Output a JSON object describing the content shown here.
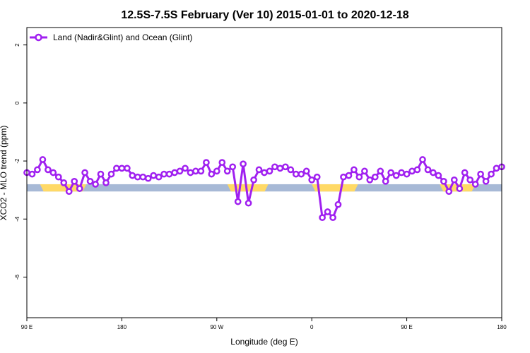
{
  "chart_data": {
    "type": "line",
    "title": "12.5S-7.5S February (Ver 10)   2015-01-01 to 2020-12-18",
    "xlabel": "Longitude (deg E)",
    "ylabel": "XCO2 - MLO trend (ppm)",
    "xlim": [
      90,
      450
    ],
    "ylim": [
      -7.4,
      2.6
    ],
    "x_ticks": [
      {
        "value": 90,
        "label": "90 E"
      },
      {
        "value": 162,
        "label": "180"
      },
      {
        "value": 234,
        "label": "90 W"
      },
      {
        "value": 306,
        "label": "0"
      },
      {
        "value": 378,
        "label": "90 E"
      },
      {
        "value": 450,
        "label": "180"
      }
    ],
    "y_ticks": [
      {
        "value": 2,
        "label": "2"
      },
      {
        "value": 0,
        "label": "0"
      },
      {
        "value": -2,
        "label": "-2"
      },
      {
        "value": -4,
        "label": "-4"
      },
      {
        "value": -6,
        "label": "-6"
      }
    ],
    "grid": false,
    "legend_position": "top-left",
    "series": [
      {
        "name": "Land (Nadir&Glint) and Ocean (Glint)",
        "color": "#a020f0",
        "marker": "open-circle",
        "x": [
          90,
          94,
          98,
          102,
          106,
          110,
          114,
          118,
          122,
          126,
          130,
          134,
          138,
          142,
          146,
          150,
          154,
          158,
          162,
          166,
          170,
          174,
          178,
          182,
          186,
          190,
          194,
          198,
          202,
          206,
          210,
          214,
          218,
          222,
          226,
          230,
          234,
          238,
          242,
          246,
          250,
          254,
          258,
          262,
          266,
          270,
          274,
          278,
          282,
          286,
          290,
          294,
          298,
          302,
          306,
          310,
          314,
          318,
          322,
          326,
          330,
          334,
          338,
          342,
          346,
          350,
          354,
          358,
          362,
          366,
          370,
          374,
          378,
          382,
          386,
          390,
          394,
          398,
          402,
          406,
          410,
          414,
          418,
          422,
          426,
          430,
          434,
          438,
          442,
          446,
          450
        ],
        "values": [
          -2.4,
          -2.45,
          -2.3,
          -1.95,
          -2.3,
          -2.4,
          -2.55,
          -2.75,
          -3.05,
          -2.7,
          -2.95,
          -2.4,
          -2.7,
          -2.8,
          -2.45,
          -2.75,
          -2.45,
          -2.25,
          -2.25,
          -2.25,
          -2.5,
          -2.55,
          -2.55,
          -2.6,
          -2.5,
          -2.55,
          -2.45,
          -2.45,
          -2.4,
          -2.35,
          -2.25,
          -2.4,
          -2.35,
          -2.35,
          -2.05,
          -2.45,
          -2.35,
          -2.05,
          -2.35,
          -2.2,
          -3.4,
          -2.1,
          -3.45,
          -2.65,
          -2.3,
          -2.4,
          -2.35,
          -2.2,
          -2.25,
          -2.2,
          -2.3,
          -2.45,
          -2.45,
          -2.35,
          -2.65,
          -2.55,
          -3.95,
          -3.75,
          -3.95,
          -3.5,
          -2.55,
          -2.5,
          -2.3,
          -2.55,
          -2.35,
          -2.65,
          -2.55,
          -2.35,
          -2.7,
          -2.4,
          -2.5,
          -2.4,
          -2.45,
          -2.35,
          -2.3,
          -1.95,
          -2.3,
          -2.4,
          -2.5,
          -2.7,
          -3.05,
          -2.65,
          -2.95,
          -2.4,
          -2.65,
          -2.8,
          -2.45,
          -2.7,
          -2.45,
          -2.25,
          -2.2
        ]
      }
    ],
    "background_band": {
      "y_range": [
        -3.05,
        -2.8
      ],
      "color": "#a7b9d6",
      "highlight_color": "#ffd966",
      "highlights": [
        {
          "x": [
            100,
            135
          ]
        },
        {
          "x": [
            242,
            273
          ]
        },
        {
          "x": [
            306,
            341
          ]
        },
        {
          "x": [
            403,
            430
          ]
        }
      ]
    }
  }
}
